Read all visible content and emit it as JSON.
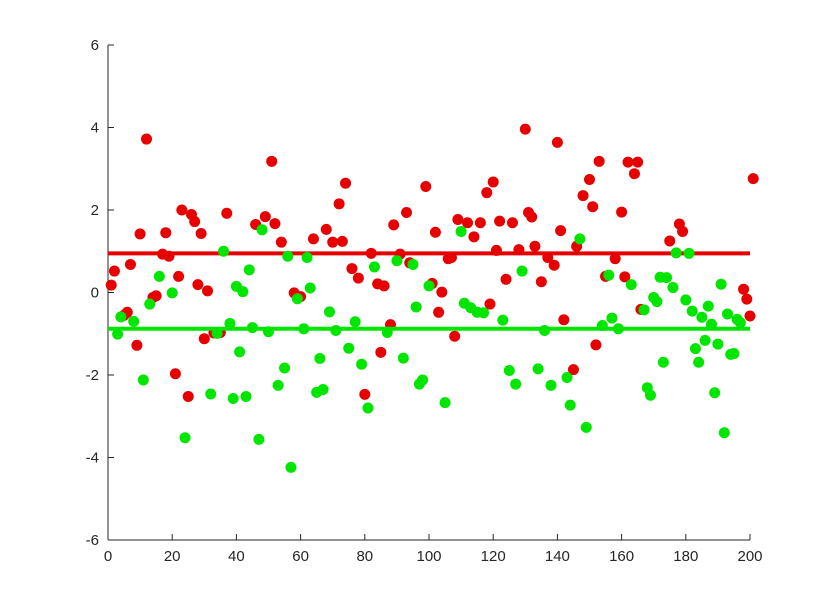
{
  "chart_data": {
    "type": "scatter",
    "title": "",
    "xlabel": "",
    "ylabel": "",
    "xlim": [
      0,
      200
    ],
    "ylim": [
      -6,
      6
    ],
    "x_ticks": [
      0,
      20,
      40,
      60,
      80,
      100,
      120,
      140,
      160,
      180,
      200
    ],
    "y_ticks": [
      -6,
      -4,
      -2,
      0,
      2,
      4,
      6
    ],
    "grid": false,
    "legend": false,
    "series": [
      {
        "color": "#e60000",
        "mean": 0.95,
        "points": [
          [
            1,
            0.18
          ],
          [
            2,
            0.52
          ],
          [
            5,
            -0.55
          ],
          [
            6,
            -0.48
          ],
          [
            7,
            0.68
          ],
          [
            9,
            -1.28
          ],
          [
            10,
            1.42
          ],
          [
            12,
            3.72
          ],
          [
            14,
            -0.12
          ],
          [
            15,
            -0.08
          ],
          [
            17,
            0.93
          ],
          [
            18,
            1.45
          ],
          [
            19,
            0.88
          ],
          [
            21,
            -1.97
          ],
          [
            22,
            0.39
          ],
          [
            23,
            2.0
          ],
          [
            25,
            -2.52
          ],
          [
            26,
            1.89
          ],
          [
            27,
            1.72
          ],
          [
            28,
            0.19
          ],
          [
            29,
            1.43
          ],
          [
            30,
            -1.12
          ],
          [
            31,
            0.04
          ],
          [
            33,
            -0.98
          ],
          [
            35,
            -0.97
          ],
          [
            37,
            1.92
          ],
          [
            46,
            1.65
          ],
          [
            49,
            1.84
          ],
          [
            51,
            3.18
          ],
          [
            52,
            1.67
          ],
          [
            54,
            1.22
          ],
          [
            58,
            -0.01
          ],
          [
            60,
            -0.1
          ],
          [
            64,
            1.3
          ],
          [
            68,
            1.53
          ],
          [
            70,
            1.22
          ],
          [
            72,
            2.15
          ],
          [
            73,
            1.24
          ],
          [
            74,
            2.65
          ],
          [
            76,
            0.58
          ],
          [
            78,
            0.35
          ],
          [
            80,
            -2.47
          ],
          [
            82,
            0.95
          ],
          [
            84,
            0.21
          ],
          [
            85,
            -1.45
          ],
          [
            86,
            0.16
          ],
          [
            88,
            -0.78
          ],
          [
            89,
            1.64
          ],
          [
            91,
            0.93
          ],
          [
            93,
            1.94
          ],
          [
            94,
            0.72
          ],
          [
            99,
            2.57
          ],
          [
            101,
            0.22
          ],
          [
            102,
            1.46
          ],
          [
            103,
            -0.48
          ],
          [
            104,
            0.01
          ],
          [
            106,
            0.82
          ],
          [
            107,
            0.85
          ],
          [
            108,
            -1.06
          ],
          [
            109,
            1.77
          ],
          [
            112,
            1.69
          ],
          [
            114,
            1.35
          ],
          [
            116,
            1.69
          ],
          [
            118,
            2.42
          ],
          [
            119,
            -0.28
          ],
          [
            120,
            2.68
          ],
          [
            121,
            1.02
          ],
          [
            122,
            1.73
          ],
          [
            124,
            0.32
          ],
          [
            126,
            1.69
          ],
          [
            128,
            1.04
          ],
          [
            130,
            3.96
          ],
          [
            131,
            1.94
          ],
          [
            132,
            1.83
          ],
          [
            133,
            1.12
          ],
          [
            135,
            0.26
          ],
          [
            137,
            0.85
          ],
          [
            139,
            0.66
          ],
          [
            140,
            3.64
          ],
          [
            141,
            1.5
          ],
          [
            142,
            -0.66
          ],
          [
            145,
            -1.87
          ],
          [
            146,
            1.12
          ],
          [
            148,
            2.35
          ],
          [
            150,
            2.74
          ],
          [
            151,
            2.08
          ],
          [
            152,
            -1.27
          ],
          [
            153,
            3.18
          ],
          [
            155,
            0.39
          ],
          [
            158,
            0.82
          ],
          [
            160,
            1.95
          ],
          [
            161,
            0.38
          ],
          [
            162,
            3.16
          ],
          [
            164,
            2.88
          ],
          [
            165,
            3.16
          ],
          [
            166,
            -0.41
          ],
          [
            175,
            1.25
          ],
          [
            178,
            1.66
          ],
          [
            179,
            1.48
          ],
          [
            198,
            0.08
          ],
          [
            199,
            -0.16
          ],
          [
            200,
            -0.57
          ],
          [
            201,
            2.76
          ]
        ]
      },
      {
        "color": "#00e600",
        "mean": -0.88,
        "points": [
          [
            3,
            -1.01
          ],
          [
            4,
            -0.59
          ],
          [
            8,
            -0.7
          ],
          [
            11,
            -2.12
          ],
          [
            13,
            -0.28
          ],
          [
            16,
            0.39
          ],
          [
            20,
            -0.01
          ],
          [
            24,
            -3.52
          ],
          [
            32,
            -2.46
          ],
          [
            34,
            -0.99
          ],
          [
            36,
            1.0
          ],
          [
            38,
            -0.75
          ],
          [
            39,
            -2.57
          ],
          [
            40,
            0.15
          ],
          [
            41,
            -1.44
          ],
          [
            42,
            0.02
          ],
          [
            43,
            -2.52
          ],
          [
            44,
            0.55
          ],
          [
            45,
            -0.85
          ],
          [
            47,
            -3.56
          ],
          [
            48,
            1.52
          ],
          [
            50,
            -0.95
          ],
          [
            53,
            -2.25
          ],
          [
            55,
            -1.83
          ],
          [
            56,
            0.88
          ],
          [
            57,
            -4.24
          ],
          [
            59,
            -0.15
          ],
          [
            61,
            -0.88
          ],
          [
            62,
            0.85
          ],
          [
            63,
            0.11
          ],
          [
            65,
            -2.42
          ],
          [
            66,
            -1.6
          ],
          [
            67,
            -2.35
          ],
          [
            69,
            -0.47
          ],
          [
            71,
            -0.92
          ],
          [
            75,
            -1.35
          ],
          [
            77,
            -0.71
          ],
          [
            79,
            -1.74
          ],
          [
            81,
            -2.8
          ],
          [
            83,
            0.62
          ],
          [
            87,
            -0.97
          ],
          [
            90,
            0.77
          ],
          [
            92,
            -1.59
          ],
          [
            95,
            0.68
          ],
          [
            96,
            -0.35
          ],
          [
            97,
            -2.22
          ],
          [
            98,
            -2.12
          ],
          [
            100,
            0.16
          ],
          [
            105,
            -2.67
          ],
          [
            110,
            1.48
          ],
          [
            111,
            -0.26
          ],
          [
            113,
            -0.37
          ],
          [
            115,
            -0.48
          ],
          [
            117,
            -0.49
          ],
          [
            123,
            -0.67
          ],
          [
            125,
            -1.89
          ],
          [
            127,
            -2.22
          ],
          [
            129,
            0.52
          ],
          [
            134,
            -1.85
          ],
          [
            136,
            -0.92
          ],
          [
            138,
            -2.25
          ],
          [
            143,
            -2.06
          ],
          [
            144,
            -2.73
          ],
          [
            147,
            1.3
          ],
          [
            149,
            -3.27
          ],
          [
            154,
            -0.8
          ],
          [
            156,
            0.42
          ],
          [
            157,
            -0.62
          ],
          [
            159,
            -0.88
          ],
          [
            163,
            0.19
          ],
          [
            167,
            -0.42
          ],
          [
            168,
            -2.31
          ],
          [
            169,
            -2.49
          ],
          [
            170,
            -0.12
          ],
          [
            171,
            -0.22
          ],
          [
            172,
            0.37
          ],
          [
            173,
            -1.69
          ],
          [
            174,
            0.36
          ],
          [
            176,
            0.12
          ],
          [
            177,
            0.96
          ],
          [
            180,
            -0.18
          ],
          [
            181,
            0.95
          ],
          [
            182,
            -0.45
          ],
          [
            183,
            -1.36
          ],
          [
            184,
            -1.69
          ],
          [
            185,
            -0.6
          ],
          [
            186,
            -1.16
          ],
          [
            187,
            -0.33
          ],
          [
            188,
            -0.77
          ],
          [
            189,
            -2.43
          ],
          [
            190,
            -1.25
          ],
          [
            191,
            0.2
          ],
          [
            192,
            -3.4
          ],
          [
            193,
            -0.52
          ],
          [
            194,
            -1.5
          ],
          [
            195,
            -1.48
          ],
          [
            196,
            -0.65
          ],
          [
            197,
            -0.73
          ]
        ]
      }
    ]
  }
}
